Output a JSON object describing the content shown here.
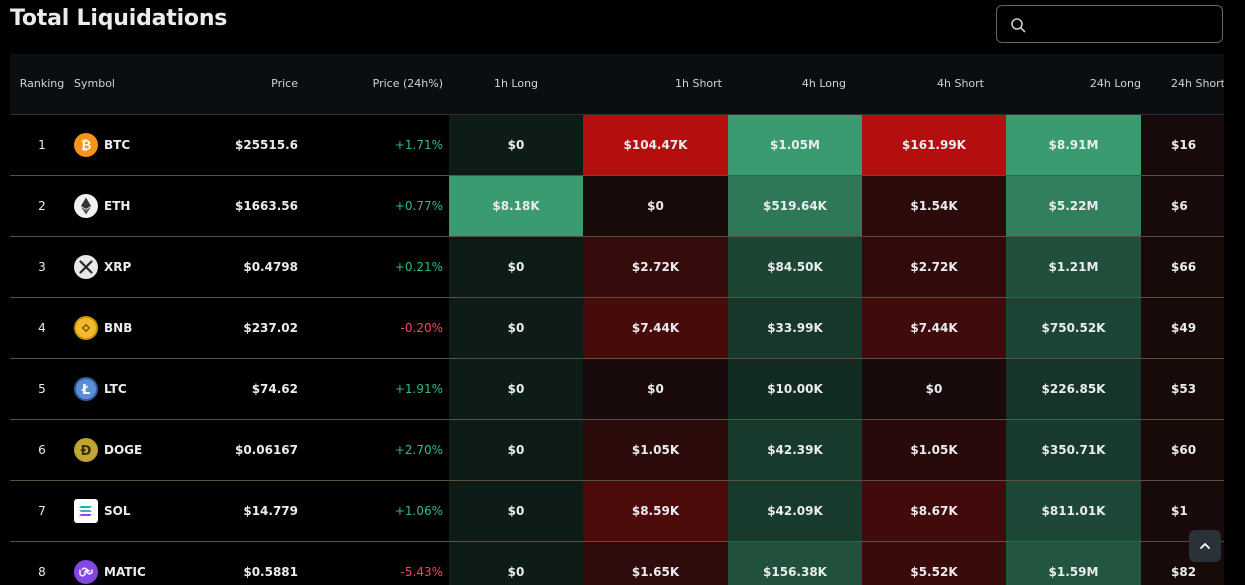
{
  "title": "Total Liquidations",
  "search": {
    "placeholder": "",
    "value": ""
  },
  "columns": [
    "Ranking",
    "Symbol",
    "Price",
    "Price (24h%)",
    "1h Long",
    "1h Short",
    "4h Long",
    "4h Short",
    "24h Long",
    "24h Short"
  ],
  "rows": [
    {
      "rank": "1",
      "symbol": "BTC",
      "icon": "bitcoin-icon",
      "price": "$25515.6",
      "change": "+1.71%",
      "h1_long": "$0",
      "h1_short": "$104.47K",
      "h4_long": "$1.05M",
      "h4_short": "$161.99K",
      "h24_long": "$8.91M",
      "h24_short": "$16"
    },
    {
      "rank": "2",
      "symbol": "ETH",
      "icon": "ethereum-icon",
      "price": "$1663.56",
      "change": "+0.77%",
      "h1_long": "$8.18K",
      "h1_short": "$0",
      "h4_long": "$519.64K",
      "h4_short": "$1.54K",
      "h24_long": "$5.22M",
      "h24_short": "$6"
    },
    {
      "rank": "3",
      "symbol": "XRP",
      "icon": "xrp-icon",
      "price": "$0.4798",
      "change": "+0.21%",
      "h1_long": "$0",
      "h1_short": "$2.72K",
      "h4_long": "$84.50K",
      "h4_short": "$2.72K",
      "h24_long": "$1.21M",
      "h24_short": "$66"
    },
    {
      "rank": "4",
      "symbol": "BNB",
      "icon": "bnb-icon",
      "price": "$237.02",
      "change": "-0.20%",
      "h1_long": "$0",
      "h1_short": "$7.44K",
      "h4_long": "$33.99K",
      "h4_short": "$7.44K",
      "h24_long": "$750.52K",
      "h24_short": "$49"
    },
    {
      "rank": "5",
      "symbol": "LTC",
      "icon": "litecoin-icon",
      "price": "$74.62",
      "change": "+1.91%",
      "h1_long": "$0",
      "h1_short": "$0",
      "h4_long": "$10.00K",
      "h4_short": "$0",
      "h24_long": "$226.85K",
      "h24_short": "$53"
    },
    {
      "rank": "6",
      "symbol": "DOGE",
      "icon": "dogecoin-icon",
      "price": "$0.06167",
      "change": "+2.70%",
      "h1_long": "$0",
      "h1_short": "$1.05K",
      "h4_long": "$42.39K",
      "h4_short": "$1.05K",
      "h24_long": "$350.71K",
      "h24_short": "$60"
    },
    {
      "rank": "7",
      "symbol": "SOL",
      "icon": "solana-icon",
      "price": "$14.779",
      "change": "+1.06%",
      "h1_long": "$0",
      "h1_short": "$8.59K",
      "h4_long": "$42.09K",
      "h4_short": "$8.67K",
      "h24_long": "$811.01K",
      "h24_short": "$1"
    },
    {
      "rank": "8",
      "symbol": "MATIC",
      "icon": "polygon-icon",
      "price": "$0.5881",
      "change": "-5.43%",
      "h1_long": "$0",
      "h1_short": "$1.65K",
      "h4_long": "$156.38K",
      "h4_short": "$5.52K",
      "h24_long": "$1.59M",
      "h24_short": "$82"
    }
  ],
  "colors": {
    "positive": "#2ebd85",
    "negative": "#f6465d",
    "heat_long_max": "#3a9a70",
    "heat_short_max": "#b50e0e"
  }
}
